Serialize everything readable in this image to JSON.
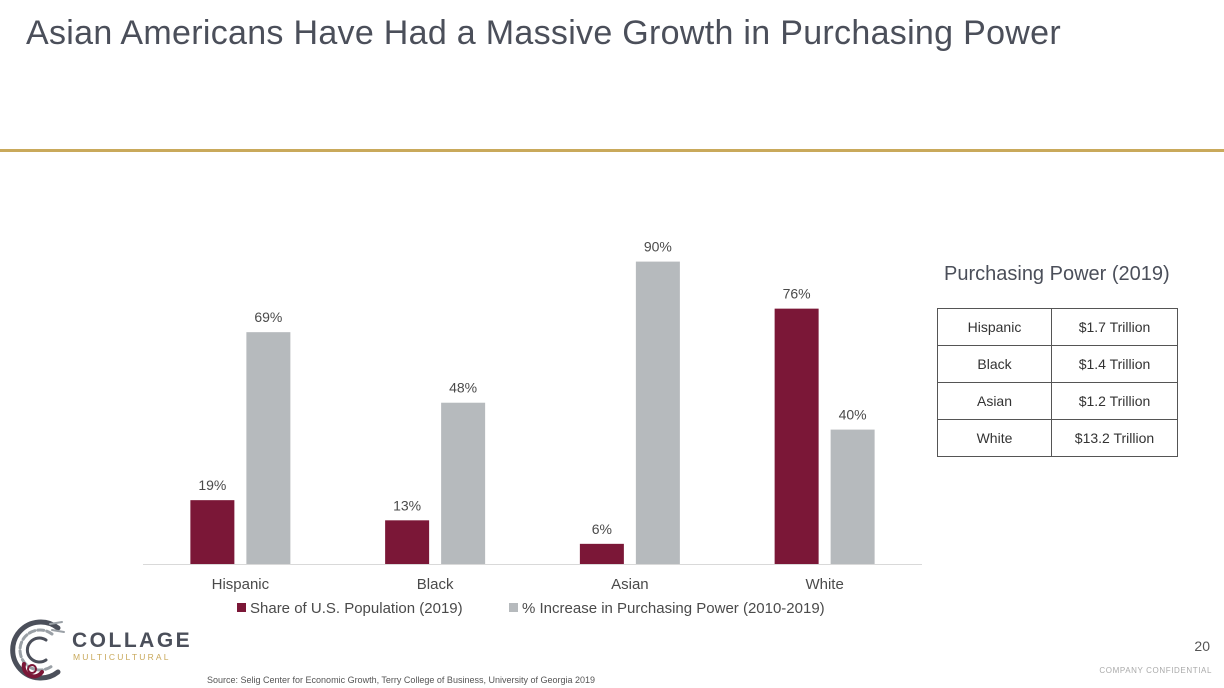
{
  "slide": {
    "title": "Asian Americans Have Had a Massive Growth in Purchasing Power",
    "page_number": "20",
    "confidential": "COMPANY CONFIDENTIAL",
    "source": "Source: Selig Center for Economic Growth, Terry College of Business, University of Georgia 2019",
    "logo": {
      "word": "COLLAGE",
      "sub": "MULTICULTURAL"
    },
    "colors": {
      "accent_rule": "#c9a95b",
      "series1": "#7b1737",
      "series2": "#b6babd"
    }
  },
  "chart_data": {
    "type": "bar",
    "categories": [
      "Hispanic",
      "Black",
      "Asian",
      "White"
    ],
    "series": [
      {
        "name": "Share of U.S. Population (2019)",
        "values": [
          19,
          13,
          6,
          76
        ],
        "labels": [
          "19%",
          "13%",
          "6%",
          "76%"
        ],
        "color": "#7b1737"
      },
      {
        "name": "% Increase in Purchasing Power (2010-2019)",
        "values": [
          69,
          48,
          90,
          40
        ],
        "labels": [
          "69%",
          "48%",
          "90%",
          "40%"
        ],
        "color": "#b6babd"
      }
    ],
    "ylim": [
      0,
      100
    ],
    "grid": false,
    "legend": "bottom"
  },
  "purchasing_power": {
    "title": "Purchasing Power (2019)",
    "rows": [
      {
        "group": "Hispanic",
        "value": "$1.7 Trillion"
      },
      {
        "group": "Black",
        "value": "$1.4 Trillion"
      },
      {
        "group": "Asian",
        "value": "$1.2 Trillion"
      },
      {
        "group": "White",
        "value": "$13.2 Trillion"
      }
    ]
  }
}
